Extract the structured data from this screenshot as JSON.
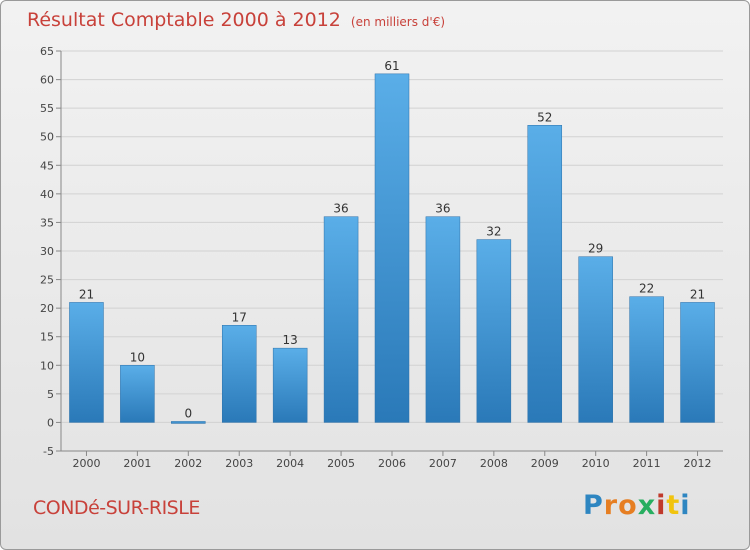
{
  "title": "Résultat Comptable 2000 à 2012",
  "subtitle": "(en milliers d'€)",
  "commune": "CONDé-SUR-RISLE",
  "brand": "Proxiti",
  "colors": {
    "bar_top": "#5aaee8",
    "bar_bottom": "#2a79b8",
    "title": "#c8413a",
    "grid": "#d2d2d2"
  },
  "chart_data": {
    "type": "bar",
    "categories": [
      "2000",
      "2001",
      "2002",
      "2003",
      "2004",
      "2005",
      "2006",
      "2007",
      "2008",
      "2009",
      "2010",
      "2011",
      "2012"
    ],
    "values": [
      21,
      10,
      0,
      17,
      13,
      36,
      61,
      36,
      32,
      52,
      29,
      22,
      21
    ],
    "value_labels": [
      "21",
      "10",
      "0",
      "17",
      "13",
      "36",
      "61",
      "36",
      "32",
      "52",
      "29",
      "22",
      "21"
    ],
    "title": "Résultat Comptable 2000 à 2012",
    "xlabel": "",
    "ylabel": "",
    "ylim": [
      -5,
      65
    ],
    "yticks": [
      -5,
      0,
      5,
      10,
      15,
      20,
      25,
      30,
      35,
      40,
      45,
      50,
      55,
      60,
      65
    ],
    "grid": true
  }
}
